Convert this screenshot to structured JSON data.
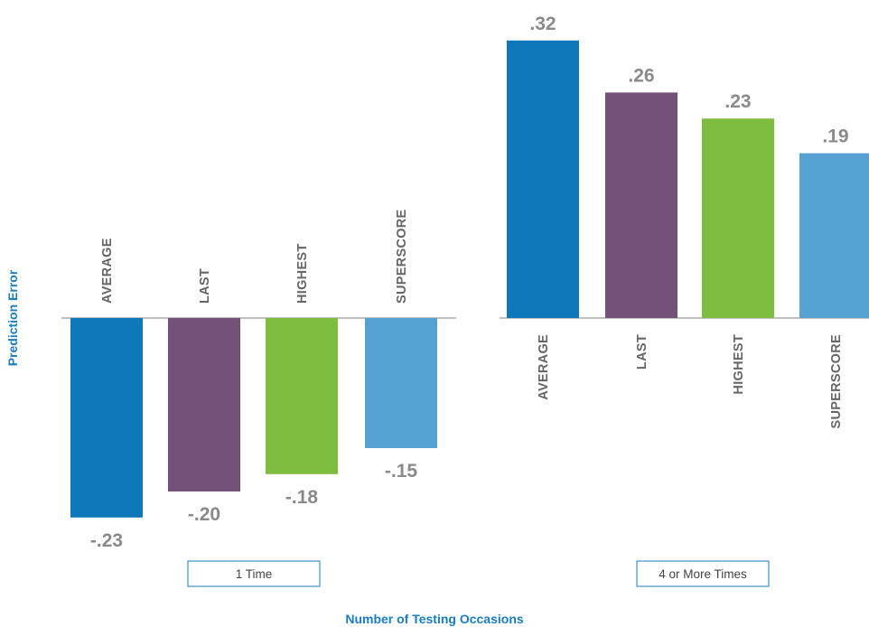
{
  "chart_data": {
    "type": "bar",
    "ylabel": "Prediction Error",
    "xlabel": "Number of Testing Occasions",
    "categories": [
      "AVERAGE",
      "LAST",
      "HIGHEST",
      "SUPERSCORE"
    ],
    "groups": [
      {
        "name": "1 Time",
        "values": [
          -0.23,
          -0.2,
          -0.18,
          -0.15
        ],
        "labels": [
          "-.23",
          "-.20",
          "-.18",
          "-.15"
        ]
      },
      {
        "name": "4 or More Times",
        "values": [
          0.32,
          0.26,
          0.23,
          0.19
        ],
        "labels": [
          ".32",
          ".26",
          ".23",
          ".19"
        ]
      }
    ],
    "colors": [
      "#0f78bb",
      "#735178",
      "#7ebd3f",
      "#54a1d2"
    ],
    "grid": false,
    "legend": "none"
  }
}
